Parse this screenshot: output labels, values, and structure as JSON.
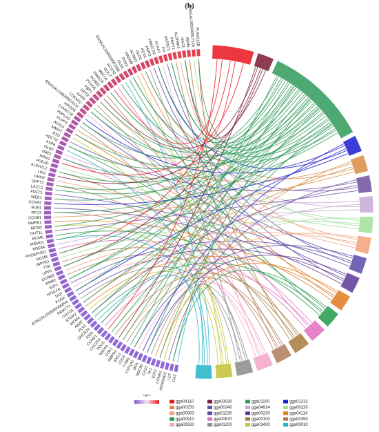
{
  "chart_data": {
    "type": "chord",
    "title": "(b)",
    "genes": [
      "PLA2G12B",
      "ENSGALG00000017528",
      "ADH6",
      "HAO1",
      "ALDH9A1",
      "PNPT1",
      "AKR1D1",
      "FH",
      "ACAA1",
      "HMGCS2",
      "PNPO",
      "PDXK",
      "GLDC",
      "ACSM3",
      "HADHB",
      "PCK1",
      "GLUL",
      "ENSGALG00000002566",
      "ACSS2",
      "GGCT",
      "MAT1A",
      "HMGCR",
      "PCBD1",
      "PTGDS",
      "FBP1",
      "GPT2",
      "AASS",
      "CDKN1C",
      "ENSGALG00000024132",
      "HPGDS",
      "CYP2C18",
      "PNPLA3",
      "PLPP3",
      "ACSL5",
      "MMUT",
      "BTD",
      "ADCY8",
      "ASPA",
      "GLS2",
      "GBE1",
      "RRM1",
      "PDE4D",
      "ALDH1L2",
      "LIG1",
      "DHFR",
      "GFPT2",
      "LACC1",
      "FDFT1",
      "WEE1",
      "CCNA2",
      "BUB1",
      "RFC3",
      "CCNB1",
      "NMRK2",
      "MCM2",
      "DOT1L",
      "MCM6",
      "MSMO1",
      "PDE8A",
      "PHOSPHO1",
      "MCM5",
      "INPP5J",
      "TTK",
      "UPP1",
      "CCNB3",
      "RRM2",
      "E2F1",
      "NT5C1A",
      "DUT",
      "PCNA",
      "ENSGALG00000005054",
      "PKMYT1",
      "GSTO1",
      "ETNK2",
      "MCM4",
      "ABAT",
      "PLK1",
      "DHCR24",
      "IDO1",
      "CCND1",
      "CDC25A",
      "POLE",
      "NSDHL",
      "CDK1",
      "AMPD2",
      "EXO1",
      "CDC6",
      "TYMS",
      "CYP1A1",
      "DCK",
      "NDC80",
      "CA13",
      "TK1",
      "E2F2",
      "CCNE2",
      "ATP6V0D2",
      "LCT",
      "CA2"
    ],
    "series": [
      {
        "name": "gga04110",
        "color": "#e8141b"
      },
      {
        "name": "gga00250",
        "color": "#d98b45"
      },
      {
        "name": "gga00983",
        "color": "#f3a07a"
      },
      {
        "name": "gga00910",
        "color": "#239a4c"
      },
      {
        "name": "gga03320",
        "color": "#f4a6c8"
      },
      {
        "name": "gga03030",
        "color": "#7a1a35"
      },
      {
        "name": "gga00240",
        "color": "#6f4fa0"
      },
      {
        "name": "gga01230",
        "color": "#5a4aa8"
      },
      {
        "name": "gga00670",
        "color": "#e06fc0"
      },
      {
        "name": "gga01200",
        "color": "#8a8a8a"
      },
      {
        "name": "gga01100",
        "color": "#2f9a5a"
      },
      {
        "name": "gga04914",
        "color": "#c6a8d4"
      },
      {
        "name": "gga00230",
        "color": "#5b3a96"
      },
      {
        "name": "gga00100",
        "color": "#a67a3c"
      },
      {
        "name": "gga03430",
        "color": "#c2c235"
      },
      {
        "name": "gga01232",
        "color": "#1b1bd0"
      },
      {
        "name": "gga00220",
        "color": "#9fe09a"
      },
      {
        "name": "gga04114",
        "color": "#e07a1e"
      },
      {
        "name": "gga00350",
        "color": "#b07a5a"
      },
      {
        "name": "gga00010",
        "color": "#22b3c8"
      }
    ],
    "colorbar_title": "logFC"
  }
}
